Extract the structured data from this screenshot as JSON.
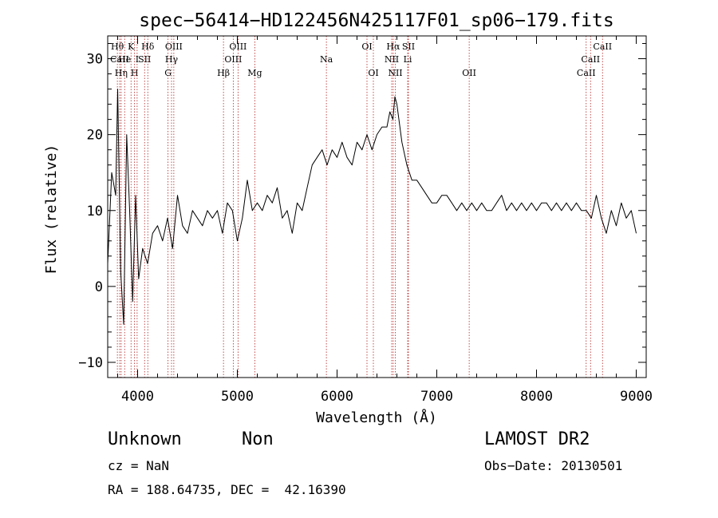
{
  "chart_data": {
    "type": "line",
    "title": "spec−56414−HD122456N425117F01_sp06−179.fits",
    "xlabel": "Wavelength (Å)",
    "ylabel": "Flux (relative)",
    "xlim": [
      3700,
      9100
    ],
    "ylim": [
      -12,
      33
    ],
    "xticks": [
      4000,
      5000,
      6000,
      7000,
      8000,
      9000
    ],
    "xtick_labels": [
      "4000",
      "5000",
      "6000",
      "7000",
      "8000",
      "9000"
    ],
    "yticks": [
      -10,
      0,
      10,
      20,
      30
    ],
    "ytick_labels": [
      "−10",
      "0",
      "10",
      "20",
      "30"
    ],
    "grid": false,
    "series": [
      {
        "x": [
          3700,
          3740,
          3780,
          3800,
          3830,
          3860,
          3890,
          3920,
          3950,
          3980,
          4010,
          4050,
          4100,
          4150,
          4200,
          4250,
          4300,
          4350,
          4400,
          4450,
          4500,
          4550,
          4600,
          4650,
          4700,
          4750,
          4800,
          4850,
          4900,
          4950,
          5000,
          5050,
          5100,
          5150,
          5200,
          5250,
          5300,
          5350,
          5400,
          5450,
          5500,
          5550,
          5600,
          5650,
          5700,
          5750,
          5800,
          5850,
          5900,
          5950,
          6000,
          6050,
          6100,
          6150,
          6200,
          6250,
          6300,
          6350,
          6400,
          6450,
          6500,
          6530,
          6560,
          6580,
          6600,
          6620,
          6650,
          6700,
          6750,
          6800,
          6850,
          6900,
          6950,
          7000,
          7050,
          7100,
          7150,
          7200,
          7250,
          7300,
          7350,
          7400,
          7450,
          7500,
          7550,
          7600,
          7650,
          7700,
          7750,
          7800,
          7850,
          7900,
          7950,
          8000,
          8050,
          8100,
          8150,
          8200,
          8250,
          8300,
          8350,
          8400,
          8450,
          8500,
          8550,
          8600,
          8650,
          8700,
          8750,
          8800,
          8850,
          8900,
          8950,
          9000
        ],
        "y": [
          3,
          15,
          12,
          26,
          2,
          -5,
          20,
          10,
          -2,
          12,
          1,
          5,
          3,
          7,
          8,
          6,
          9,
          5,
          12,
          8,
          7,
          10,
          9,
          8,
          10,
          9,
          10,
          7,
          11,
          10,
          6,
          9,
          14,
          10,
          11,
          10,
          12,
          11,
          13,
          9,
          10,
          7,
          11,
          10,
          13,
          16,
          17,
          18,
          16,
          18,
          17,
          19,
          17,
          16,
          19,
          18,
          20,
          18,
          20,
          21,
          21,
          23,
          22,
          25,
          24,
          22,
          19,
          16,
          14,
          14,
          13,
          12,
          11,
          11,
          12,
          12,
          11,
          10,
          11,
          10,
          11,
          10,
          11,
          10,
          10,
          11,
          12,
          10,
          11,
          10,
          11,
          10,
          11,
          10,
          11,
          11,
          10,
          11,
          10,
          11,
          10,
          11,
          10,
          10,
          9,
          12,
          9,
          7,
          10,
          8,
          11,
          9,
          10,
          7
        ]
      }
    ],
    "line_markers": [
      {
        "label": "Hθ",
        "x": 3797,
        "row": 1
      },
      {
        "label": "CaII",
        "x": 3820,
        "row": 2
      },
      {
        "label": "He",
        "x": 3870,
        "row": 2
      },
      {
        "label": "Hη",
        "x": 3835,
        "row": 3
      },
      {
        "label": "K",
        "x": 3934,
        "row": 1
      },
      {
        "label": "H",
        "x": 3969,
        "row": 3
      },
      {
        "label": "I",
        "x": 3995,
        "row": 2
      },
      {
        "label": "SII",
        "x": 4070,
        "row": 2
      },
      {
        "label": "Hδ",
        "x": 4102,
        "row": 1
      },
      {
        "label": "OIII",
        "x": 4363,
        "row": 1
      },
      {
        "label": "Hγ",
        "x": 4340,
        "row": 2
      },
      {
        "label": "G",
        "x": 4305,
        "row": 3
      },
      {
        "label": "Hβ",
        "x": 4861,
        "row": 3
      },
      {
        "label": "OIII",
        "x": 5007,
        "row": 1
      },
      {
        "label": "OIII",
        "x": 4959,
        "row": 2
      },
      {
        "label": "Mg",
        "x": 5175,
        "row": 3
      },
      {
        "label": "Na",
        "x": 5893,
        "row": 2
      },
      {
        "label": "OI",
        "x": 6300,
        "row": 1
      },
      {
        "label": "OI",
        "x": 6364,
        "row": 3
      },
      {
        "label": "Hα",
        "x": 6563,
        "row": 1
      },
      {
        "label": "SII",
        "x": 6716,
        "row": 1
      },
      {
        "label": "NII",
        "x": 6548,
        "row": 2
      },
      {
        "label": "Li",
        "x": 6708,
        "row": 2
      },
      {
        "label": "NII",
        "x": 6584,
        "row": 3
      },
      {
        "label": "OII",
        "x": 7325,
        "row": 3
      },
      {
        "label": "CaII",
        "x": 8662,
        "row": 1
      },
      {
        "label": "CaII",
        "x": 8542,
        "row": 2
      },
      {
        "label": "CaII",
        "x": 8498,
        "row": 3
      }
    ]
  },
  "footer": {
    "object_class": "Unknown",
    "object_subclass": "Non",
    "survey": "LAMOST DR2",
    "redshift": "cz = NaN",
    "obs_date": "Obs−Date: 20130501",
    "coords": "RA = 188.64735, DEC =  42.16390"
  }
}
